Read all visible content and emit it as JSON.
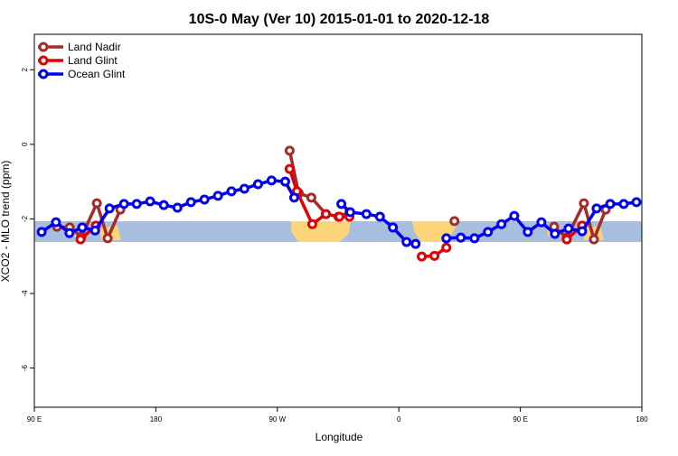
{
  "chart_data": {
    "type": "line",
    "title": "10S-0 May (Ver 10)   2015-01-01 to 2020-12-18",
    "x_label": "Longitude",
    "y_label": "XCO2 - MLO trend (ppm)",
    "xlim": [
      90,
      540
    ],
    "ylim": [
      -7.05,
      2.95
    ],
    "xticks": [
      {
        "value": 90,
        "label": "90 E"
      },
      {
        "value": 180,
        "label": "180"
      },
      {
        "value": 270,
        "label": "90 W"
      },
      {
        "value": 360,
        "label": "0"
      },
      {
        "value": 450,
        "label": "90 E"
      },
      {
        "value": 540,
        "label": "180"
      }
    ],
    "yticks": [
      2,
      0,
      -2,
      -4,
      -6
    ],
    "legend": "top-left",
    "series": [
      {
        "name": "Land Nadir",
        "color": "#a52a2a",
        "x": [
          106.8,
          116.2,
          124.9,
          136.3,
          144.3,
          153.7,
          null,
          279.1,
          285.8,
          295.2,
          306,
          315.3,
          323.4,
          null,
          401.2,
          null,
          475,
          484.4,
          497.1,
          504.5,
          513.2
        ],
        "values": [
          -2.21,
          -2.23,
          -2.48,
          -1.58,
          -2.52,
          -1.75,
          null,
          -0.17,
          -1.31,
          -1.43,
          -1.87,
          -1.94,
          -1.82,
          null,
          -2.06,
          null,
          -2.21,
          -2.5,
          -1.58,
          -2.55,
          -1.75
        ]
      },
      {
        "name": "Land Glint",
        "color": "#e00000",
        "x": [
          124.2,
          135.6,
          null,
          279.1,
          284.5,
          295.9,
          306,
          316,
          323.4,
          null,
          377,
          386.4,
          395.2,
          null,
          484.4,
          495.8
        ],
        "values": [
          -2.55,
          -2.18,
          null,
          -0.66,
          -1.26,
          -2.14,
          -1.87,
          -1.94,
          -1.94,
          null,
          -3.01,
          -2.99,
          -2.77,
          null,
          -2.55,
          -2.18
        ]
      },
      {
        "name": "Ocean Glint",
        "color": "#0000ee",
        "x": [
          95.4,
          106,
          116,
          125.5,
          135,
          145.7,
          156.4,
          165.8,
          175.8,
          185.9,
          196,
          206,
          216,
          226,
          236,
          245.6,
          255.7,
          265.7,
          275.8,
          282.5,
          null,
          317.4,
          324,
          336,
          346,
          355.6,
          365.7,
          372.4,
          null,
          395.2,
          405.9,
          416,
          426,
          436,
          445.5,
          455.5,
          465.6,
          475.6,
          485.7,
          495.8,
          506.5,
          516.6,
          526.6,
          536
        ],
        "values": [
          -2.35,
          -2.09,
          -2.38,
          -2.23,
          -2.31,
          -1.72,
          -1.6,
          -1.6,
          -1.53,
          -1.63,
          -1.7,
          -1.55,
          -1.48,
          -1.38,
          -1.26,
          -1.19,
          -1.07,
          -0.97,
          -1.0,
          -1.43,
          null,
          -1.6,
          -1.82,
          -1.87,
          -1.94,
          -2.23,
          -2.62,
          -2.67,
          null,
          -2.52,
          -2.5,
          -2.52,
          -2.35,
          -2.14,
          -1.92,
          -2.35,
          -2.09,
          -2.4,
          -2.26,
          -2.33,
          -1.72,
          -1.6,
          -1.6,
          -1.55
        ]
      }
    ]
  }
}
